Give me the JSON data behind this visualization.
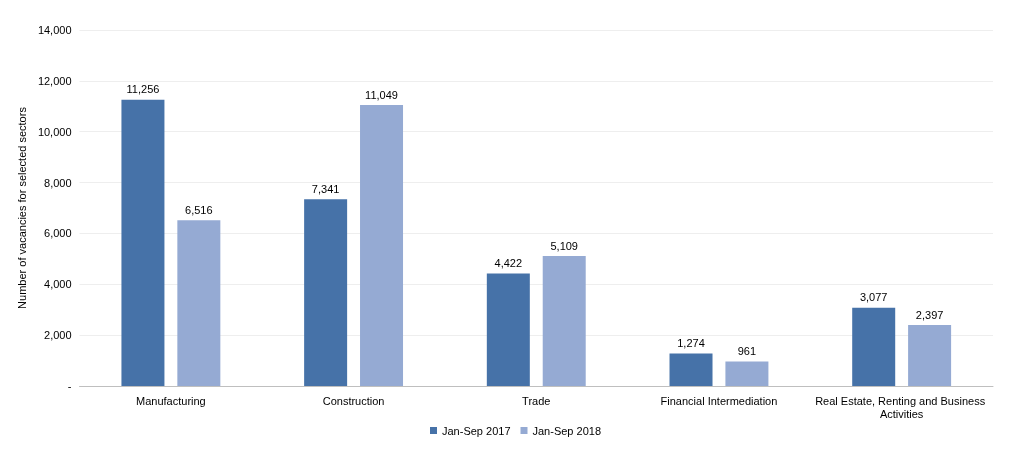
{
  "chart_data": {
    "type": "bar",
    "ylabel": "Number of vacancies for selected sectors",
    "categories": [
      "Manufacturing",
      "Construction",
      "Trade",
      "Financial Intermediation",
      "Real Estate, Renting and Business Activities"
    ],
    "series": [
      {
        "name": "Jan-Sep 2017",
        "color": "#4672a8",
        "values": [
          11256,
          7341,
          4422,
          1274,
          3077
        ],
        "value_labels": [
          "11,256",
          "7,341",
          "4,422",
          "1,274",
          "3,077"
        ]
      },
      {
        "name": "Jan-Sep 2018",
        "color": "#95aad3",
        "values": [
          6516,
          11049,
          5109,
          961,
          2397
        ],
        "value_labels": [
          "6,516",
          "11,049",
          "5,109",
          "961",
          "2,397"
        ]
      }
    ],
    "ylim": [
      0,
      14000
    ],
    "yticks": [
      {
        "value": 0,
        "label": "-"
      },
      {
        "value": 2000,
        "label": "2,000"
      },
      {
        "value": 4000,
        "label": "4,000"
      },
      {
        "value": 6000,
        "label": "6,000"
      },
      {
        "value": 8000,
        "label": "8,000"
      },
      {
        "value": 10000,
        "label": "10,000"
      },
      {
        "value": 12000,
        "label": "12,000"
      },
      {
        "value": 14000,
        "label": "14,000"
      }
    ],
    "grid": "y",
    "legend": "bottom"
  }
}
